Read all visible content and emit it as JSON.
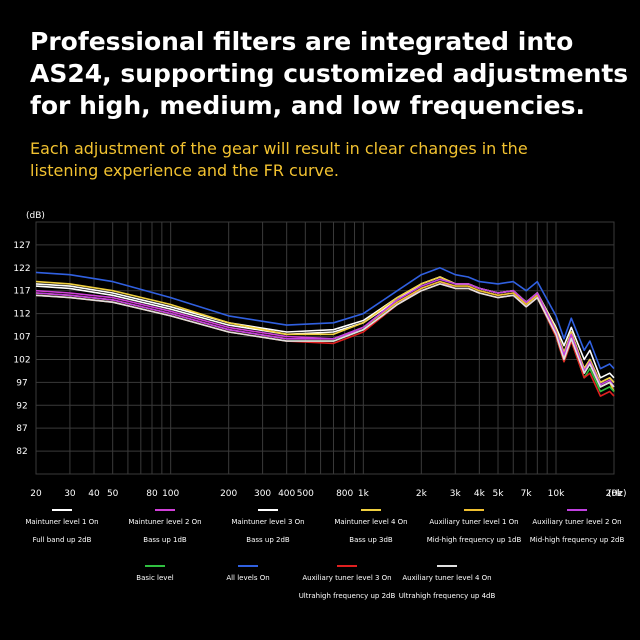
{
  "headline": {
    "line1": "Professional filters are integrated into",
    "line2": "AS24, supporting customized adjustments",
    "line3": "for high, medium, and low frequencies."
  },
  "subhead": {
    "line1": "Each adjustment of the gear will result in clear changes in the",
    "line2": "listening experience and the FR curve."
  },
  "colors": {
    "background": "#000000",
    "grid": "#3a3a3a",
    "axis_text": "#ffffff",
    "subhead": "#f2c230"
  },
  "chart_data": {
    "type": "line",
    "xscale": "log",
    "xlim": [
      20,
      20000
    ],
    "ylim": [
      77,
      132
    ],
    "yunit": "(dB)",
    "xunit": "(Hz)",
    "yticks": [
      127,
      122,
      117,
      112,
      107,
      102,
      97,
      92,
      87,
      82
    ],
    "xticks": [
      {
        "v": 20,
        "label": "20"
      },
      {
        "v": 30,
        "label": "30"
      },
      {
        "v": 40,
        "label": "40"
      },
      {
        "v": 50,
        "label": "50"
      },
      {
        "v": 80,
        "label": "80"
      },
      {
        "v": 100,
        "label": "100"
      },
      {
        "v": 200,
        "label": "200"
      },
      {
        "v": 300,
        "label": "300"
      },
      {
        "v": 400,
        "label": "400"
      },
      {
        "v": 500,
        "label": "500"
      },
      {
        "v": 800,
        "label": "800"
      },
      {
        "v": 1000,
        "label": "1k"
      },
      {
        "v": 2000,
        "label": "2k"
      },
      {
        "v": 3000,
        "label": "3k"
      },
      {
        "v": 4000,
        "label": "4k"
      },
      {
        "v": 5000,
        "label": "5k"
      },
      {
        "v": 7000,
        "label": "7k"
      },
      {
        "v": 10000,
        "label": "10k"
      },
      {
        "v": 20000,
        "label": "20k"
      }
    ],
    "grid": true,
    "x": [
      20,
      30,
      50,
      100,
      200,
      400,
      700,
      1000,
      1500,
      2000,
      2500,
      3000,
      3500,
      4000,
      5000,
      6000,
      7000,
      8000,
      10000,
      11000,
      12000,
      14000,
      15000,
      17000,
      19000,
      20000
    ],
    "series": [
      {
        "name": "Full band up 2dB",
        "color": "#ffffff",
        "values": [
          118,
          117.5,
          116,
          113,
          109.5,
          107.5,
          108,
          110,
          115,
          118.5,
          120,
          118.5,
          118.5,
          117.5,
          116.5,
          117,
          114.5,
          116.5,
          109,
          105,
          109,
          102,
          104,
          98,
          99,
          98
        ]
      },
      {
        "name": "Bass up 1dB",
        "color": "#d040d8",
        "values": [
          117,
          116.5,
          115.5,
          112.5,
          109,
          107,
          106.5,
          108.5,
          114,
          117.5,
          119,
          117.5,
          117.5,
          116.5,
          115.5,
          116,
          113.5,
          115.5,
          107.5,
          102,
          107,
          99,
          101,
          96,
          97,
          96
        ]
      },
      {
        "name": "Bass up 2dB",
        "color": "#ffffff",
        "values": [
          118.5,
          118,
          116.5,
          113.5,
          110,
          108,
          108.5,
          110.5,
          115.5,
          118.5,
          120,
          118.5,
          118.5,
          117.5,
          116.5,
          117,
          114.5,
          116.5,
          108.5,
          103.5,
          108,
          100,
          102,
          97,
          98,
          97
        ]
      },
      {
        "name": "Bass up 3dB",
        "color": "#f0d040",
        "values": [
          119,
          118.5,
          117,
          114,
          110,
          107.5,
          107.5,
          110,
          115.5,
          118.5,
          120,
          118.5,
          118.5,
          117.5,
          116.5,
          117,
          114.5,
          116.5,
          108.5,
          103.5,
          108,
          100,
          102,
          97,
          98,
          97
        ]
      },
      {
        "name": "Mid-high frequency up 1dB",
        "color": "#f0c030",
        "values": [
          116.5,
          116,
          115,
          112,
          108.5,
          106.5,
          106.5,
          109,
          114.5,
          117.5,
          119,
          118,
          118,
          117,
          116,
          116.5,
          114,
          116,
          107.5,
          102.5,
          107,
          99,
          101,
          96,
          97,
          95
        ]
      },
      {
        "name": "Mid-high frequency up 2dB",
        "color": "#c040e0",
        "values": [
          116.5,
          116,
          115,
          112,
          108.5,
          106.5,
          106.5,
          109,
          115,
          118,
          119.5,
          118.5,
          118.5,
          117.5,
          116.5,
          117,
          114.5,
          116.5,
          108,
          103,
          107.5,
          99.5,
          101.5,
          96.5,
          97.5,
          96
        ]
      },
      {
        "name": "Basic level",
        "color": "#30c040",
        "values": [
          116,
          115.5,
          114.5,
          111.5,
          108,
          106,
          106,
          108.5,
          114,
          117,
          118.5,
          117.5,
          117.5,
          116.5,
          115.5,
          116,
          113.5,
          115.5,
          107,
          101.5,
          106,
          98,
          100,
          95,
          96,
          95
        ]
      },
      {
        "name": "All levels On",
        "color": "#3060e0",
        "values": [
          121,
          120.5,
          119,
          115.5,
          111.5,
          109.5,
          110,
          112,
          117,
          120.5,
          122,
          120.5,
          120,
          119,
          118.5,
          119,
          117,
          119,
          111.5,
          106.5,
          111,
          104,
          106,
          100,
          101,
          100
        ]
      },
      {
        "name": "Ultrahigh frequency up 2dB",
        "color": "#e02020",
        "values": [
          116,
          115.5,
          114.5,
          111.5,
          108,
          106,
          105.5,
          108,
          114,
          117,
          118.5,
          117.5,
          117.5,
          116.5,
          115.5,
          116,
          113.5,
          115.5,
          107,
          101.5,
          106,
          98,
          99,
          94,
          95,
          94
        ]
      },
      {
        "name": "Ultrahigh frequency up 4dB",
        "color": "#e0e0e0",
        "values": [
          116,
          115.5,
          114.5,
          111.5,
          108,
          106,
          106,
          108.5,
          114,
          117,
          118.5,
          117.5,
          117.5,
          116.5,
          115.5,
          116,
          113.5,
          115.5,
          107.5,
          102,
          106.5,
          99,
          101,
          96,
          97,
          96
        ]
      }
    ]
  },
  "legend": [
    {
      "line1": "Maintuner level 1 On",
      "line2": "Full band up 2dB",
      "color": "#ffffff"
    },
    {
      "line1": "Maintuner level 2 On",
      "line2": "Bass up 1dB",
      "color": "#d040d8"
    },
    {
      "line1": "Maintuner level 3 On",
      "line2": "Bass up 2dB",
      "color": "#ffffff"
    },
    {
      "line1": "Maintuner level 4 On",
      "line2": "Bass up 3dB",
      "color": "#f0d040"
    },
    {
      "line1": "Auxiliary tuner level 1 On",
      "line2": "Mid-high frequency up 1dB",
      "color": "#f0c030"
    },
    {
      "line1": "Auxiliary tuner level 2 On",
      "line2": "Mid-high frequency up 2dB",
      "color": "#c040e0"
    },
    {
      "line1": "Basic level",
      "line2": "",
      "color": "#30c040"
    },
    {
      "line1": "All levels On",
      "line2": "",
      "color": "#3060e0"
    },
    {
      "line1": "Auxiliary tuner level 3 On",
      "line2": "Ultrahigh frequency up 2dB",
      "color": "#e02020"
    },
    {
      "line1": "Auxiliary tuner level 4 On",
      "line2": "Ultrahigh frequency up 4dB",
      "color": "#e0e0e0"
    }
  ]
}
